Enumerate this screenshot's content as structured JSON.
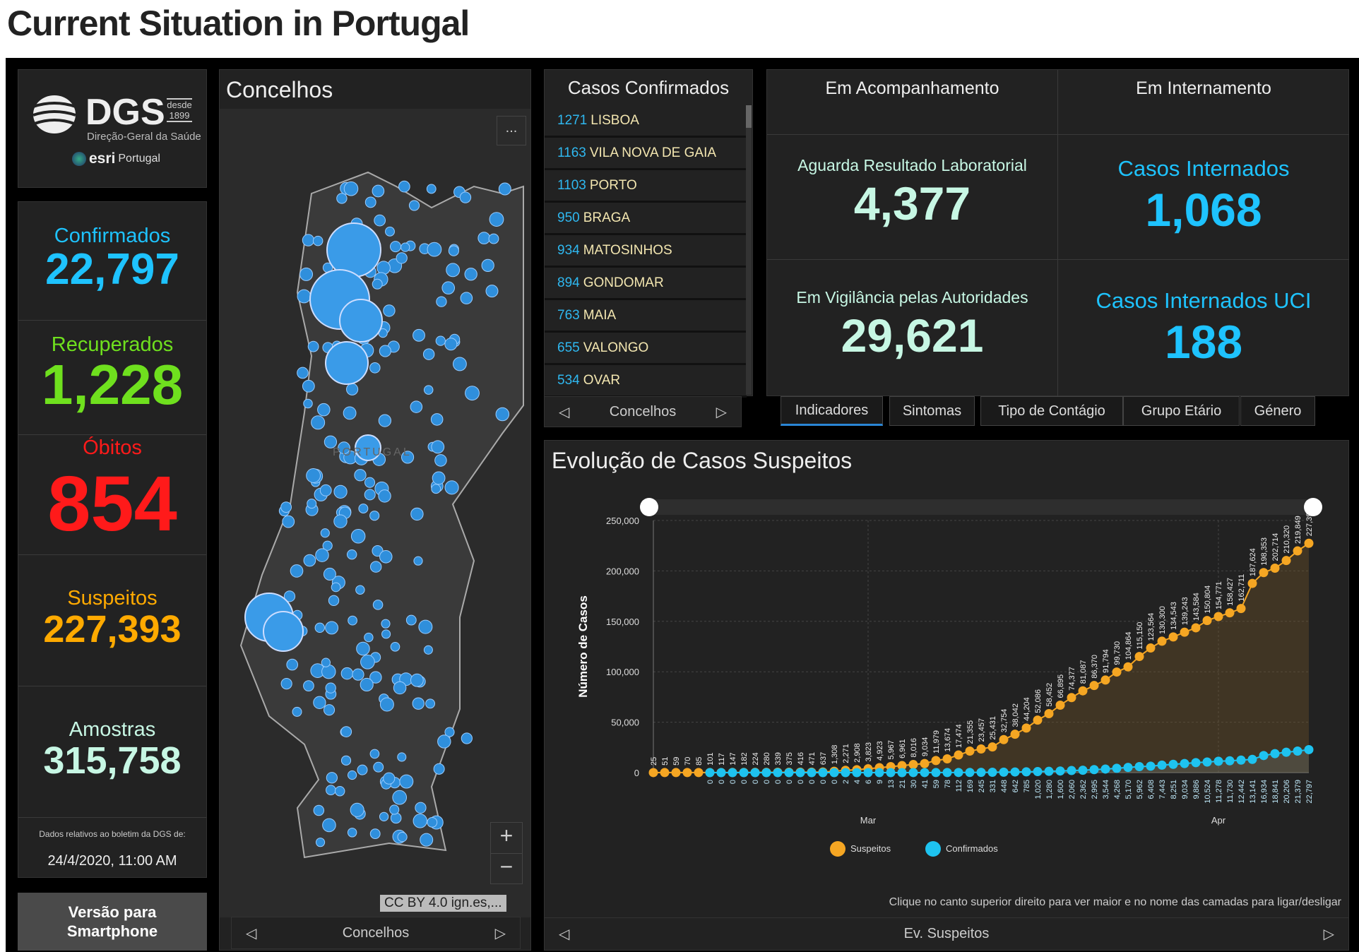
{
  "page_title": "Current Situation in Portugal",
  "logo": {
    "name": "DGS",
    "since": "desde",
    "year": "1899",
    "subtitle": "Direção-Geral da Saúde",
    "partner": "esri",
    "partner_suffix": "Portugal"
  },
  "stats": [
    {
      "label": "Confirmados",
      "value": "22,797",
      "color": "#1ec3ff"
    },
    {
      "label": "Recuperados",
      "value": "1,228",
      "color": "#6fe01e"
    },
    {
      "label": "Óbitos",
      "value": "854",
      "color": "#ff1a1a"
    },
    {
      "label": "Suspeitos",
      "value": "227,393",
      "color": "#ffaa00"
    },
    {
      "label": "Amostras",
      "value": "315,758",
      "color": "#c7f7e4"
    }
  ],
  "report": {
    "note": "Dados relativos ao boletim da DGS de:",
    "date": "24/4/2020, 11:00 AM"
  },
  "smartphone_button": "Versão para Smartphone",
  "map": {
    "title": "Concelhos",
    "menu": "...",
    "country_label": "PORTUGAL",
    "zoom_in": "+",
    "zoom_out": "−",
    "attribution": "CC BY 4.0 ign.es,...",
    "nav_label": "Concelhos"
  },
  "list": {
    "title": "Casos Confirmados",
    "nav_label": "Concelhos",
    "items": [
      {
        "n": "1271",
        "name": "LISBOA"
      },
      {
        "n": "1163",
        "name": "VILA NOVA DE GAIA"
      },
      {
        "n": "1103",
        "name": "PORTO"
      },
      {
        "n": "950",
        "name": "BRAGA"
      },
      {
        "n": "934",
        "name": "MATOSINHOS"
      },
      {
        "n": "894",
        "name": "GONDOMAR"
      },
      {
        "n": "763",
        "name": "MAIA"
      },
      {
        "n": "655",
        "name": "VALONGO"
      },
      {
        "n": "534",
        "name": "OVAR"
      }
    ]
  },
  "indicators": {
    "col1_header": "Em Acompanhamento",
    "col2_header": "Em Internamento",
    "cells": [
      {
        "label": "Aguarda Resultado Laboratorial",
        "value": "4,377",
        "label_color": "#c7f7e4",
        "value_color": "#c7f7e4"
      },
      {
        "label": "Casos Internados",
        "value": "1,068",
        "label_color": "#1ec3ff",
        "value_color": "#1ec3ff"
      },
      {
        "label": "Em Vigilância pelas Autoridades",
        "value": "29,621",
        "label_color": "#c7f7e4",
        "value_color": "#c7f7e4"
      },
      {
        "label": "Casos Internados UCI",
        "value": "188",
        "label_color": "#1ec3ff",
        "value_color": "#1ec3ff"
      }
    ]
  },
  "tabs": [
    {
      "label": "Indicadores",
      "active": true
    },
    {
      "label": "Sintomas"
    },
    {
      "label": "Tipo de Contágio"
    },
    {
      "label": "Grupo Etário"
    },
    {
      "label": "Género"
    }
  ],
  "chart_panel": {
    "title": "Evolução de Casos Suspeitos",
    "hint": "Clique no canto superior direito para ver maior e no nome das camadas para ligar/desligar",
    "nav_label": "Ev. Suspeitos"
  },
  "chart_data": {
    "type": "line",
    "ylabel": "Número de Casos",
    "ylim": [
      0,
      250000
    ],
    "yticks": [
      "0",
      "50,000",
      "100,000",
      "150,000",
      "200,000",
      "250,000"
    ],
    "xticks": [
      {
        "label": "Mar",
        "index": 19
      },
      {
        "label": "Apr",
        "index": 50
      }
    ],
    "legend_position": "bottom",
    "grid": true,
    "series": [
      {
        "name": "Suspeitos",
        "color": "#f5a623",
        "values": [
          25,
          51,
          59,
          70,
          85,
          101,
          117,
          147,
          182,
          224,
          280,
          339,
          375,
          416,
          471,
          637,
          1308,
          2271,
          2908,
          3823,
          4923,
          5967,
          6961,
          8016,
          9034,
          11979,
          13674,
          17474,
          21355,
          23457,
          25431,
          32754,
          38042,
          44204,
          52086,
          58452,
          66895,
          74377,
          81087,
          86370,
          91794,
          99730,
          104864,
          115150,
          123564,
          130300,
          134543,
          139243,
          143584,
          150804,
          154771,
          158427,
          162711,
          187624,
          198353,
          202714,
          210320,
          219849,
          227393
        ]
      },
      {
        "name": "Confirmados",
        "color": "#1ec3f0",
        "start_index": 5,
        "values": [
          0,
          0,
          0,
          0,
          0,
          0,
          0,
          0,
          0,
          0,
          0,
          0,
          2,
          4,
          6,
          9,
          13,
          21,
          30,
          41,
          59,
          78,
          112,
          169,
          245,
          331,
          448,
          642,
          785,
          1020,
          1280,
          1600,
          2060,
          2362,
          2995,
          3544,
          4268,
          5170,
          5962,
          6408,
          7443,
          8251,
          9034,
          9886,
          10524,
          11278,
          11730,
          12442,
          13141,
          16934,
          18841,
          20206,
          21379,
          22797
        ]
      }
    ]
  }
}
